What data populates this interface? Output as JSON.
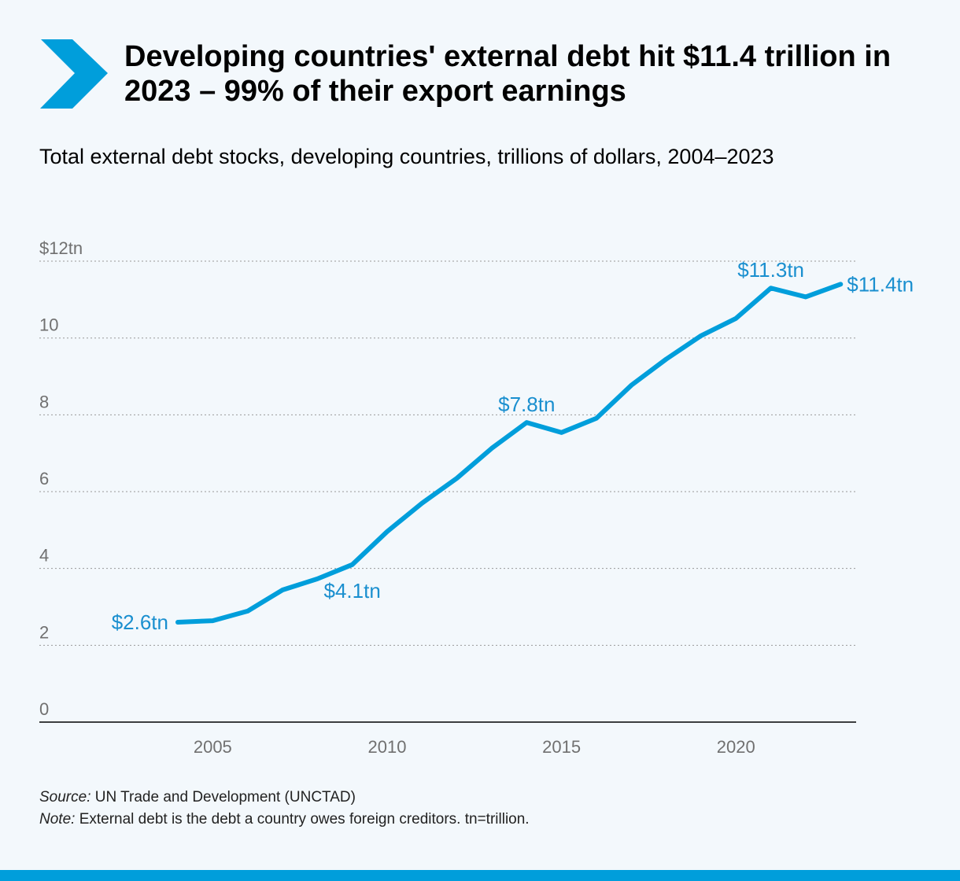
{
  "title": "Developing countries' external debt hit $11.4 trillion in 2023 – 99% of their export earnings",
  "colors": {
    "accent": "#009edb",
    "label": "#1a8fcf"
  },
  "chart_data": {
    "type": "line",
    "title": "Total external debt stocks, developing countries, trillions of dollars, 2004–2023",
    "xlabel": "",
    "ylabel": "",
    "x": [
      2004,
      2005,
      2006,
      2007,
      2008,
      2009,
      2010,
      2011,
      2012,
      2013,
      2014,
      2015,
      2016,
      2017,
      2018,
      2019,
      2020,
      2021,
      2022,
      2023
    ],
    "series": [
      {
        "name": "External debt stocks",
        "values": [
          2.6,
          2.64,
          2.89,
          3.44,
          3.73,
          4.1,
          4.96,
          5.7,
          6.35,
          7.13,
          7.8,
          7.54,
          7.91,
          8.77,
          9.45,
          10.06,
          10.51,
          11.3,
          11.07,
          11.4
        ]
      }
    ],
    "ylim": [
      0,
      12
    ],
    "xlim": [
      2000,
      2024
    ],
    "yticks": [
      {
        "v": 0,
        "t": "0"
      },
      {
        "v": 2,
        "t": "2"
      },
      {
        "v": 4,
        "t": "4"
      },
      {
        "v": 6,
        "t": "6"
      },
      {
        "v": 8,
        "t": "8"
      },
      {
        "v": 10,
        "t": "10"
      },
      {
        "v": 12,
        "t": "$12tn"
      }
    ],
    "xticks": [
      {
        "v": 2005,
        "t": "2005"
      },
      {
        "v": 2010,
        "t": "2010"
      },
      {
        "v": 2015,
        "t": "2015"
      },
      {
        "v": 2020,
        "t": "2020"
      }
    ],
    "annotations": [
      {
        "x": 2004,
        "y": 2.6,
        "text": "$2.6tn",
        "pos": "left"
      },
      {
        "x": 2009,
        "y": 4.1,
        "text": "$4.1tn",
        "pos": "below"
      },
      {
        "x": 2014,
        "y": 7.8,
        "text": "$7.8tn",
        "pos": "above"
      },
      {
        "x": 2021,
        "y": 11.3,
        "text": "$11.3tn",
        "pos": "above"
      },
      {
        "x": 2023,
        "y": 11.4,
        "text": "$11.4tn",
        "pos": "right"
      }
    ],
    "grid": true
  },
  "notes": {
    "source_label": "Source:",
    "source": " UN Trade and Development (UNCTAD)",
    "note_label": "Note:",
    "note": " External debt is the debt a country owes foreign creditors. tn=trillion."
  }
}
